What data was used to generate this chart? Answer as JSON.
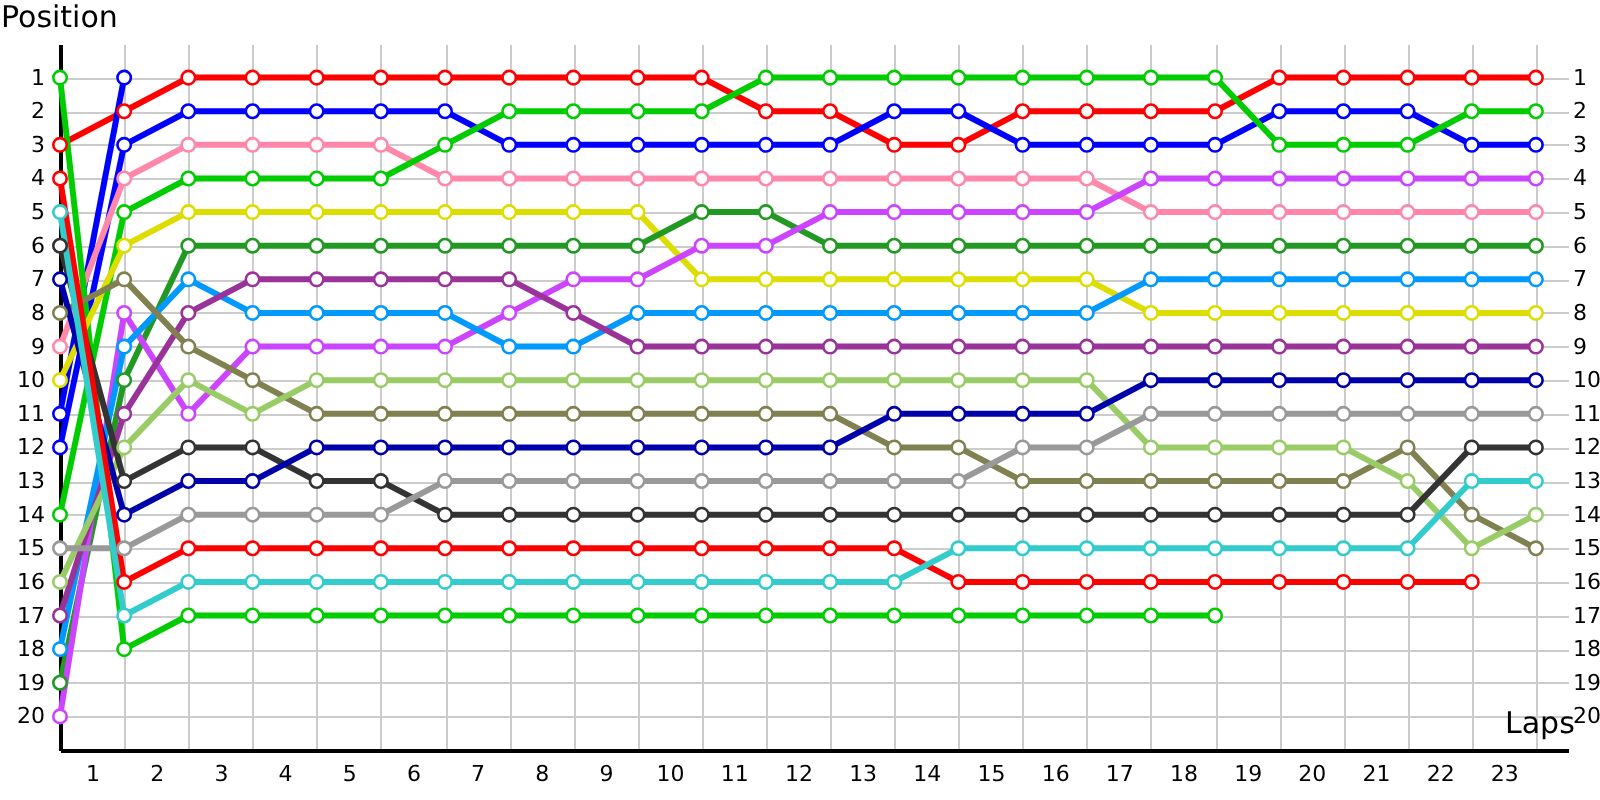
{
  "chart_data": {
    "type": "line",
    "xlabel": "Laps",
    "ylabel": "Position",
    "x": [
      0,
      1,
      2,
      3,
      4,
      5,
      6,
      7,
      8,
      9,
      10,
      11,
      12,
      13,
      14,
      15,
      16,
      17,
      18,
      19,
      20,
      21,
      22,
      23
    ],
    "xlim": [
      0,
      23.5
    ],
    "xticks": [
      {
        "value": 0.5,
        "label": "1"
      },
      {
        "value": 1.5,
        "label": "2"
      },
      {
        "value": 2.5,
        "label": "3"
      },
      {
        "value": 3.5,
        "label": "4"
      },
      {
        "value": 4.5,
        "label": "5"
      },
      {
        "value": 5.5,
        "label": "6"
      },
      {
        "value": 6.5,
        "label": "7"
      },
      {
        "value": 7.5,
        "label": "8"
      },
      {
        "value": 8.5,
        "label": "9"
      },
      {
        "value": 9.5,
        "label": "10"
      },
      {
        "value": 10.5,
        "label": "11"
      },
      {
        "value": 11.5,
        "label": "12"
      },
      {
        "value": 12.5,
        "label": "13"
      },
      {
        "value": 13.5,
        "label": "14"
      },
      {
        "value": 14.5,
        "label": "15"
      },
      {
        "value": 15.5,
        "label": "16"
      },
      {
        "value": 16.5,
        "label": "17"
      },
      {
        "value": 17.5,
        "label": "18"
      },
      {
        "value": 18.5,
        "label": "19"
      },
      {
        "value": 19.5,
        "label": "20"
      },
      {
        "value": 20.5,
        "label": "21"
      },
      {
        "value": 21.5,
        "label": "22"
      },
      {
        "value": 22.5,
        "label": "23"
      }
    ],
    "ylim": [
      21,
      0
    ],
    "yticks": [
      1,
      2,
      3,
      4,
      5,
      6,
      7,
      8,
      9,
      10,
      11,
      12,
      13,
      14,
      15,
      16,
      17,
      18,
      19,
      20
    ],
    "y2lim": [
      21,
      0
    ],
    "y2ticks": [
      1,
      2,
      3,
      4,
      5,
      6,
      7,
      8,
      9,
      10,
      11,
      12,
      13,
      14,
      15,
      16,
      17,
      18,
      19,
      20
    ],
    "grid": true,
    "marker": "circle",
    "line_style": "solid",
    "series": [
      {
        "color": "#ff0000",
        "values": [
          3,
          2,
          1,
          1,
          1,
          1,
          1,
          1,
          1,
          1,
          1,
          2,
          2,
          3,
          3,
          2,
          2,
          2,
          2,
          1,
          1,
          1,
          1,
          1
        ]
      },
      {
        "color": "#0000ff",
        "values": [
          12,
          3,
          2,
          2,
          2,
          2,
          2,
          3,
          3,
          3,
          3,
          3,
          3,
          2,
          2,
          3,
          3,
          3,
          3,
          2,
          2,
          2,
          3,
          3
        ]
      },
      {
        "color": "#0000ff",
        "values": [
          11,
          1,
          null,
          null,
          null,
          null,
          null,
          null,
          null,
          null,
          null,
          null,
          null,
          null,
          null,
          null,
          null,
          null,
          null,
          null,
          null,
          null,
          null,
          null
        ]
      },
      {
        "color": "#ff88aa",
        "values": [
          9,
          4,
          3,
          3,
          3,
          3,
          4,
          4,
          4,
          4,
          4,
          4,
          4,
          4,
          4,
          4,
          4,
          5,
          5,
          5,
          5,
          5,
          5,
          5
        ]
      },
      {
        "color": "#00cc00",
        "values": [
          14,
          5,
          4,
          4,
          4,
          4,
          3,
          2,
          2,
          2,
          2,
          1,
          1,
          1,
          1,
          1,
          1,
          1,
          1,
          3,
          3,
          3,
          2,
          2
        ]
      },
      {
        "color": "#00cc00",
        "values": [
          1,
          18,
          17,
          17,
          17,
          17,
          17,
          17,
          17,
          17,
          17,
          17,
          17,
          17,
          17,
          17,
          17,
          17,
          17,
          null,
          null,
          null,
          null,
          null
        ]
      },
      {
        "color": "#dddd00",
        "values": [
          10,
          6,
          5,
          5,
          5,
          5,
          5,
          5,
          5,
          5,
          7,
          7,
          7,
          7,
          7,
          7,
          7,
          8,
          8,
          8,
          8,
          8,
          8,
          8
        ]
      },
      {
        "color": "#229922",
        "values": [
          19,
          10,
          6,
          6,
          6,
          6,
          6,
          6,
          6,
          6,
          5,
          5,
          6,
          6,
          6,
          6,
          6,
          6,
          6,
          6,
          6,
          6,
          6,
          6
        ]
      },
      {
        "color": "#cc44ff",
        "values": [
          20,
          8,
          11,
          9,
          9,
          9,
          9,
          8,
          7,
          7,
          6,
          6,
          5,
          5,
          5,
          5,
          5,
          4,
          4,
          4,
          4,
          4,
          4,
          4
        ]
      },
      {
        "color": "#0099ff",
        "values": [
          18,
          9,
          7,
          8,
          8,
          8,
          8,
          9,
          9,
          8,
          8,
          8,
          8,
          8,
          8,
          8,
          8,
          7,
          7,
          7,
          7,
          7,
          7,
          7
        ]
      },
      {
        "color": "#993399",
        "values": [
          17,
          11,
          8,
          7,
          7,
          7,
          7,
          7,
          8,
          9,
          9,
          9,
          9,
          9,
          9,
          9,
          9,
          9,
          9,
          9,
          9,
          9,
          9,
          9
        ]
      },
      {
        "color": "#808050",
        "values": [
          8,
          7,
          9,
          10,
          11,
          11,
          11,
          11,
          11,
          11,
          11,
          11,
          11,
          12,
          12,
          13,
          13,
          13,
          13,
          13,
          13,
          12,
          14,
          15
        ]
      },
      {
        "color": "#99cc66",
        "values": [
          16,
          12,
          10,
          11,
          10,
          10,
          10,
          10,
          10,
          10,
          10,
          10,
          10,
          10,
          10,
          10,
          10,
          12,
          12,
          12,
          12,
          13,
          15,
          14
        ]
      },
      {
        "color": "#333333",
        "values": [
          6,
          13,
          12,
          12,
          13,
          13,
          14,
          14,
          14,
          14,
          14,
          14,
          14,
          14,
          14,
          14,
          14,
          14,
          14,
          14,
          14,
          14,
          12,
          12
        ]
      },
      {
        "color": "#0000aa",
        "values": [
          7,
          14,
          13,
          13,
          12,
          12,
          12,
          12,
          12,
          12,
          12,
          12,
          12,
          11,
          11,
          11,
          11,
          10,
          10,
          10,
          10,
          10,
          10,
          10
        ]
      },
      {
        "color": "#999999",
        "values": [
          15,
          15,
          14,
          14,
          14,
          14,
          13,
          13,
          13,
          13,
          13,
          13,
          13,
          13,
          13,
          12,
          12,
          11,
          11,
          11,
          11,
          11,
          11,
          11
        ]
      },
      {
        "color": "#ff0000",
        "values": [
          4,
          16,
          15,
          15,
          15,
          15,
          15,
          15,
          15,
          15,
          15,
          15,
          15,
          15,
          16,
          16,
          16,
          16,
          16,
          16,
          16,
          16,
          16,
          null
        ]
      },
      {
        "color": "#33cccc",
        "values": [
          5,
          17,
          16,
          16,
          16,
          16,
          16,
          16,
          16,
          16,
          16,
          16,
          16,
          16,
          15,
          15,
          15,
          15,
          15,
          15,
          15,
          15,
          13,
          13
        ]
      }
    ]
  }
}
